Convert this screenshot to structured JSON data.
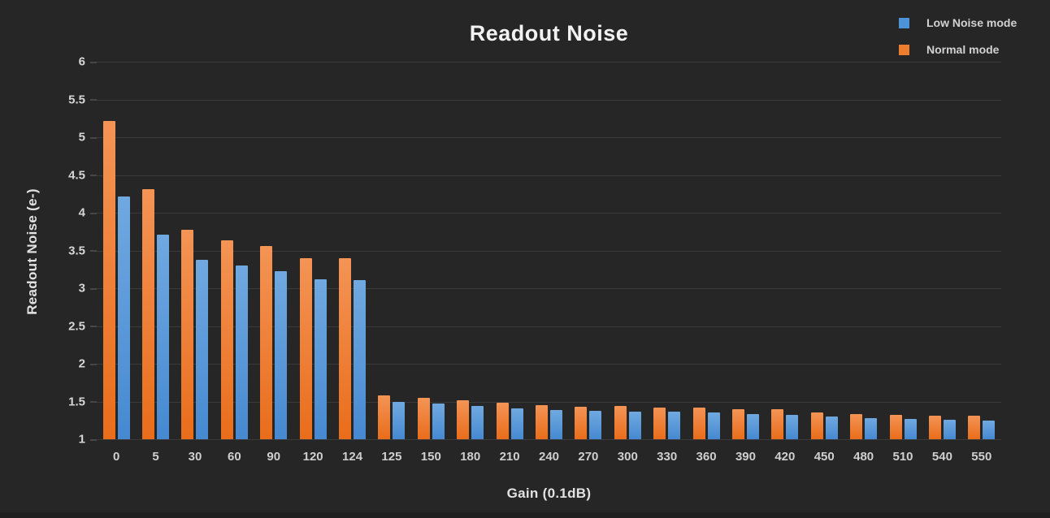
{
  "chart_data": {
    "type": "bar",
    "title": "Readout Noise",
    "xlabel": "Gain (0.1dB)",
    "ylabel": "Readout Noise (e-)",
    "ylim": [
      1,
      6
    ],
    "yticks": [
      1,
      1.5,
      2,
      2.5,
      3,
      3.5,
      4,
      4.5,
      5,
      5.5,
      6
    ],
    "ytick_labels": [
      "1",
      "1.5",
      "2",
      "2.5",
      "3",
      "3.5",
      "4",
      "4.5",
      "5",
      "5.5",
      "6"
    ],
    "categories": [
      "0",
      "5",
      "30",
      "60",
      "90",
      "120",
      "124",
      "125",
      "150",
      "180",
      "210",
      "240",
      "270",
      "300",
      "330",
      "360",
      "390",
      "420",
      "450",
      "480",
      "510",
      "540",
      "550"
    ],
    "series": [
      {
        "id": "low-noise",
        "name": "Low Noise mode",
        "color": "#4d93d8",
        "color_top": "#70a9e0",
        "color_bottom": "#4689d1",
        "values": [
          4.21,
          3.71,
          3.38,
          3.3,
          3.23,
          3.12,
          3.11,
          1.5,
          1.47,
          1.44,
          1.41,
          1.39,
          1.38,
          1.37,
          1.37,
          1.35,
          1.33,
          1.32,
          1.3,
          1.28,
          1.27,
          1.26,
          1.25
        ]
      },
      {
        "id": "normal",
        "name": "Normal mode",
        "color": "#ee7d2e",
        "color_top": "#f49455",
        "color_bottom": "#e96d1b",
        "values": [
          5.22,
          4.31,
          3.77,
          3.63,
          3.56,
          3.4,
          3.4,
          1.58,
          1.55,
          1.52,
          1.48,
          1.45,
          1.43,
          1.44,
          1.42,
          1.42,
          1.4,
          1.4,
          1.36,
          1.33,
          1.32,
          1.31,
          1.31
        ]
      }
    ],
    "legend_position": "top-right",
    "grid": "horizontal",
    "background": "#262626",
    "text_color": "#d6d6d6"
  }
}
